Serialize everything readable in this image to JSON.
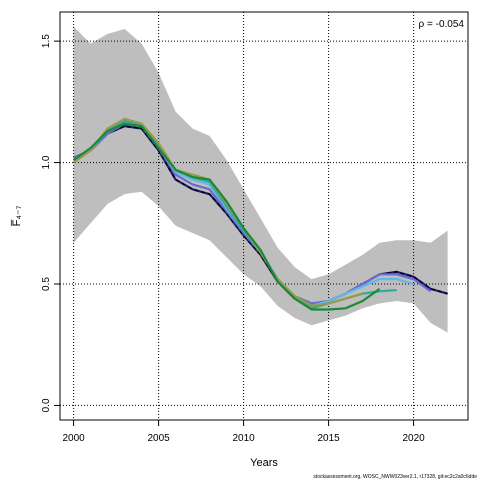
{
  "chart_data": {
    "type": "line",
    "xlabel": "Years",
    "ylabel": "F̅₄₋₇",
    "annotation": "ρ = -0.054",
    "caption": "stockassessment.org, WOSC_NWW023ver2.1, r17328, git:ec2c2a0c6dde",
    "xlim": [
      1999.2,
      2023.2
    ],
    "ylim": [
      -0.06,
      1.62
    ],
    "xticks": [
      2000,
      2005,
      2010,
      2015,
      2020
    ],
    "yticks": [
      0.0,
      0.5,
      1.0,
      1.5
    ],
    "ytick_labels": [
      "0.0",
      "0.5",
      "1.0",
      "1.5"
    ],
    "grid": true,
    "band": {
      "x": [
        2000,
        2001,
        2002,
        2003,
        2004,
        2005,
        2006,
        2007,
        2008,
        2009,
        2010,
        2011,
        2012,
        2013,
        2014,
        2015,
        2016,
        2017,
        2018,
        2019,
        2020,
        2021,
        2022
      ],
      "upper": [
        1.56,
        1.49,
        1.53,
        1.55,
        1.49,
        1.37,
        1.21,
        1.14,
        1.11,
        1.01,
        0.89,
        0.77,
        0.65,
        0.57,
        0.52,
        0.54,
        0.58,
        0.62,
        0.67,
        0.68,
        0.68,
        0.67,
        0.72
      ],
      "lower": [
        0.67,
        0.75,
        0.83,
        0.87,
        0.88,
        0.82,
        0.74,
        0.71,
        0.68,
        0.61,
        0.54,
        0.49,
        0.41,
        0.36,
        0.33,
        0.35,
        0.37,
        0.4,
        0.42,
        0.43,
        0.42,
        0.34,
        0.3
      ],
      "color": "#bebebe"
    },
    "series": [
      {
        "color": "#1f1f7a",
        "dashed": false,
        "x": [
          2000,
          2001,
          2002,
          2003,
          2004,
          2005,
          2006,
          2007,
          2008,
          2009,
          2010,
          2011,
          2012,
          2013,
          2014,
          2015,
          2016,
          2017,
          2018,
          2019,
          2020,
          2021,
          2022
        ],
        "values": [
          1.02,
          1.05,
          1.12,
          1.15,
          1.14,
          1.05,
          0.93,
          0.89,
          0.87,
          0.79,
          0.7,
          0.62,
          0.51,
          0.44,
          0.41,
          0.43,
          0.46,
          0.5,
          0.54,
          0.55,
          0.53,
          0.48,
          0.46
        ]
      },
      {
        "color": "#000000",
        "dashed": true,
        "x": [
          2000,
          2001,
          2002,
          2003,
          2004,
          2005,
          2006,
          2007,
          2008,
          2009,
          2010,
          2011,
          2012,
          2013,
          2014,
          2015,
          2016,
          2017,
          2018,
          2019,
          2020,
          2021,
          2022
        ],
        "values": [
          1.02,
          1.05,
          1.12,
          1.15,
          1.14,
          1.05,
          0.93,
          0.89,
          0.87,
          0.79,
          0.7,
          0.62,
          0.51,
          0.44,
          0.41,
          0.43,
          0.46,
          0.5,
          0.54,
          0.55,
          0.53,
          0.48,
          0.46
        ]
      },
      {
        "color": "#6a6ad0",
        "dashed": false,
        "x": [
          2000,
          2001,
          2002,
          2003,
          2004,
          2005,
          2006,
          2007,
          2008,
          2009,
          2010,
          2011,
          2012,
          2013,
          2014,
          2015,
          2016,
          2017,
          2018,
          2019,
          2020,
          2021
        ],
        "values": [
          1.02,
          1.05,
          1.12,
          1.16,
          1.15,
          1.06,
          0.95,
          0.91,
          0.89,
          0.8,
          0.71,
          0.63,
          0.52,
          0.45,
          0.42,
          0.43,
          0.46,
          0.5,
          0.54,
          0.54,
          0.52,
          0.47
        ]
      },
      {
        "color": "#5fb8e8",
        "dashed": false,
        "x": [
          2000,
          2001,
          2002,
          2003,
          2004,
          2005,
          2006,
          2007,
          2008,
          2009,
          2010,
          2011,
          2012,
          2013,
          2014,
          2015,
          2016,
          2017,
          2018,
          2019,
          2020
        ],
        "values": [
          1.01,
          1.05,
          1.13,
          1.17,
          1.15,
          1.07,
          0.96,
          0.93,
          0.91,
          0.81,
          0.72,
          0.63,
          0.52,
          0.45,
          0.41,
          0.43,
          0.46,
          0.49,
          0.52,
          0.52,
          0.5
        ]
      },
      {
        "color": "#2fa8a0",
        "dashed": false,
        "x": [
          2000,
          2001,
          2002,
          2003,
          2004,
          2005,
          2006,
          2007,
          2008,
          2009,
          2010,
          2011,
          2012,
          2013,
          2014,
          2015,
          2016,
          2017,
          2018,
          2019
        ],
        "values": [
          1.01,
          1.05,
          1.13,
          1.17,
          1.16,
          1.07,
          0.97,
          0.94,
          0.92,
          0.82,
          0.72,
          0.63,
          0.52,
          0.45,
          0.4,
          0.42,
          0.44,
          0.46,
          0.47,
          0.475
        ]
      },
      {
        "color": "#9a9a4a",
        "dashed": false,
        "x": [
          2000,
          2001,
          2002,
          2003,
          2004,
          2005,
          2006,
          2007,
          2008,
          2009,
          2010,
          2011,
          2012,
          2013,
          2014,
          2015,
          2016,
          2017
        ],
        "values": [
          1.0,
          1.05,
          1.14,
          1.18,
          1.16,
          1.08,
          0.97,
          0.95,
          0.93,
          0.83,
          0.73,
          0.63,
          0.52,
          0.45,
          0.41,
          0.42,
          0.44,
          0.46
        ]
      },
      {
        "color": "#1a8a3a",
        "dashed": false,
        "x": [
          2000,
          2001,
          2002,
          2003,
          2004,
          2005,
          2006,
          2007,
          2008,
          2009,
          2010,
          2011,
          2012,
          2013,
          2014,
          2015,
          2016,
          2017,
          2018
        ],
        "values": [
          1.01,
          1.06,
          1.13,
          1.16,
          1.15,
          1.06,
          0.97,
          0.94,
          0.93,
          0.84,
          0.73,
          0.64,
          0.51,
          0.44,
          0.395,
          0.395,
          0.4,
          0.43,
          0.48
        ]
      }
    ]
  }
}
